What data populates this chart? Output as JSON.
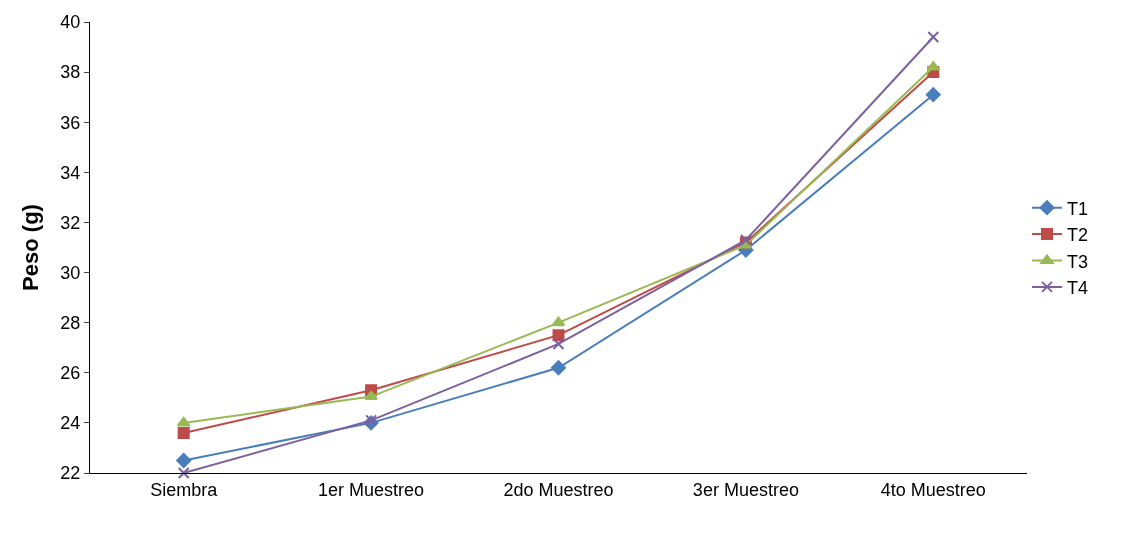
{
  "chart_data": {
    "type": "line",
    "ylabel": "Peso (g)",
    "categories": [
      "Siembra",
      "1er Muestreo",
      "2do Muestreo",
      "3er Muestreo",
      "4to Muestreo"
    ],
    "series": [
      {
        "name": "T1",
        "color": "#4a7ebb",
        "marker": "diamond",
        "values": [
          22.5,
          24.0,
          26.2,
          30.9,
          37.1
        ]
      },
      {
        "name": "T2",
        "color": "#be4b48",
        "marker": "square",
        "values": [
          23.6,
          25.3,
          27.5,
          31.2,
          38.0
        ]
      },
      {
        "name": "T3",
        "color": "#98b954",
        "marker": "triangle",
        "values": [
          24.0,
          25.05,
          28.0,
          31.1,
          38.2
        ]
      },
      {
        "name": "T4",
        "color": "#7d60a0",
        "marker": "cross",
        "values": [
          22.0,
          24.1,
          27.15,
          31.3,
          39.4
        ]
      }
    ],
    "ylim": [
      22,
      40
    ],
    "yticks": [
      22,
      24,
      26,
      28,
      30,
      32,
      34,
      36,
      38,
      40
    ],
    "legend": "right",
    "line_style": "solid"
  }
}
